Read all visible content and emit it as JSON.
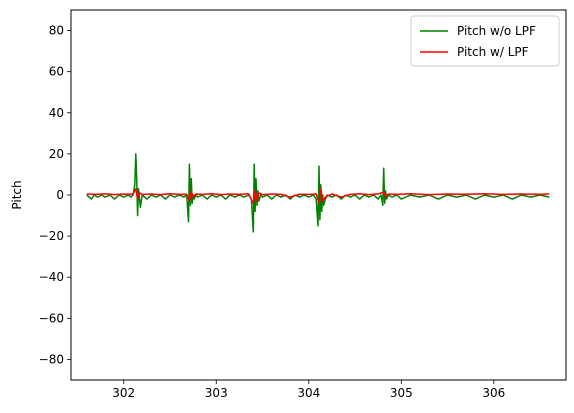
{
  "chart_data": {
    "type": "line",
    "title": "",
    "xlabel": "",
    "ylabel": "Pitch",
    "xlim": [
      301.43,
      306.78
    ],
    "ylim": [
      -90,
      90
    ],
    "xticks": [
      302,
      303,
      304,
      305,
      306
    ],
    "yticks": [
      -80,
      -60,
      -40,
      -20,
      0,
      20,
      40,
      60,
      80
    ],
    "grid": false,
    "legend_position": "top-right",
    "series": [
      {
        "name": "Pitch w/o LPF",
        "color": "#008000",
        "x": [
          301.6,
          301.65,
          301.68,
          301.72,
          301.76,
          301.8,
          301.85,
          301.9,
          301.95,
          302.0,
          302.05,
          302.08,
          302.1,
          302.12,
          302.13,
          302.14,
          302.15,
          302.16,
          302.18,
          302.2,
          302.25,
          302.3,
          302.35,
          302.4,
          302.45,
          302.5,
          302.55,
          302.6,
          302.65,
          302.68,
          302.7,
          302.71,
          302.72,
          302.73,
          302.74,
          302.75,
          302.76,
          302.78,
          302.8,
          302.85,
          302.9,
          302.95,
          303.0,
          303.05,
          303.1,
          303.15,
          303.2,
          303.25,
          303.3,
          303.35,
          303.38,
          303.4,
          303.41,
          303.42,
          303.43,
          303.44,
          303.45,
          303.46,
          303.48,
          303.5,
          303.55,
          303.6,
          303.65,
          303.7,
          303.75,
          303.8,
          303.85,
          303.9,
          303.95,
          304.0,
          304.05,
          304.08,
          304.1,
          304.11,
          304.12,
          304.13,
          304.14,
          304.15,
          304.16,
          304.18,
          304.2,
          304.25,
          304.3,
          304.35,
          304.4,
          304.45,
          304.5,
          304.55,
          304.6,
          304.65,
          304.7,
          304.75,
          304.78,
          304.8,
          304.81,
          304.82,
          304.83,
          304.84,
          304.86,
          304.9,
          304.95,
          305.0,
          305.1,
          305.2,
          305.3,
          305.4,
          305.5,
          305.6,
          305.7,
          305.8,
          305.9,
          306.0,
          306.1,
          306.2,
          306.3,
          306.4,
          306.5,
          306.6
        ],
        "y": [
          0,
          -2,
          0,
          -1,
          0,
          -1,
          0,
          -2,
          0,
          -1,
          0,
          -1,
          0,
          5,
          20,
          8,
          -10,
          3,
          -6,
          0,
          -2,
          0,
          -1,
          0,
          -2,
          0,
          -1,
          0,
          -1,
          0,
          -13,
          15,
          -5,
          8,
          -4,
          0,
          -2,
          0,
          -1,
          0,
          -2,
          0,
          -1,
          0,
          -2,
          0,
          -1,
          0,
          -1,
          0,
          -2,
          -18,
          15,
          -8,
          8,
          -5,
          2,
          -3,
          0,
          -1,
          0,
          -2,
          0,
          -1,
          0,
          -2,
          0,
          -1,
          0,
          -1,
          0,
          -2,
          -15,
          14,
          -12,
          5,
          -8,
          0,
          -5,
          -2,
          0,
          -1,
          0,
          -2,
          0,
          -1,
          0,
          -2,
          0,
          -1,
          0,
          -2,
          0,
          -5,
          13,
          -4,
          2,
          -2,
          0,
          -1,
          0,
          -2,
          0,
          -1,
          0,
          -2,
          0,
          -1,
          0,
          -2,
          0,
          -1,
          0,
          -2,
          0,
          -1,
          0,
          -1
        ]
      },
      {
        "name": "Pitch w/ LPF",
        "color": "#ff0000",
        "x": [
          301.6,
          301.7,
          301.8,
          301.9,
          302.0,
          302.1,
          302.13,
          302.15,
          302.17,
          302.2,
          302.3,
          302.4,
          302.5,
          302.6,
          302.68,
          302.71,
          302.73,
          302.75,
          302.78,
          302.85,
          302.95,
          303.05,
          303.15,
          303.25,
          303.35,
          303.4,
          303.42,
          303.44,
          303.46,
          303.5,
          303.6,
          303.7,
          303.8,
          303.9,
          304.0,
          304.08,
          304.11,
          304.13,
          304.15,
          304.18,
          304.25,
          304.35,
          304.45,
          304.55,
          304.65,
          304.75,
          304.81,
          304.83,
          304.86,
          304.95,
          305.1,
          305.3,
          305.5,
          305.7,
          305.9,
          306.1,
          306.3,
          306.5,
          306.6
        ],
        "y": [
          0.5,
          0.3,
          0.6,
          0.2,
          0.5,
          0.4,
          3,
          -2,
          1,
          0.3,
          0.5,
          0.2,
          0.6,
          0.3,
          0.4,
          -3,
          2,
          -1,
          0.5,
          0.3,
          0.6,
          0.2,
          0.5,
          0.3,
          0.6,
          -4,
          2,
          -3,
          1,
          0.2,
          0.5,
          0.3,
          -1,
          0.4,
          0.3,
          0.5,
          -4,
          3,
          -3,
          -1,
          0.5,
          -1,
          0.3,
          0.6,
          0.2,
          0.5,
          1.5,
          -1,
          0.5,
          0.3,
          0.6,
          0.2,
          0.5,
          0.4,
          0.6,
          0.3,
          0.5,
          0.4,
          0.5
        ]
      }
    ]
  }
}
